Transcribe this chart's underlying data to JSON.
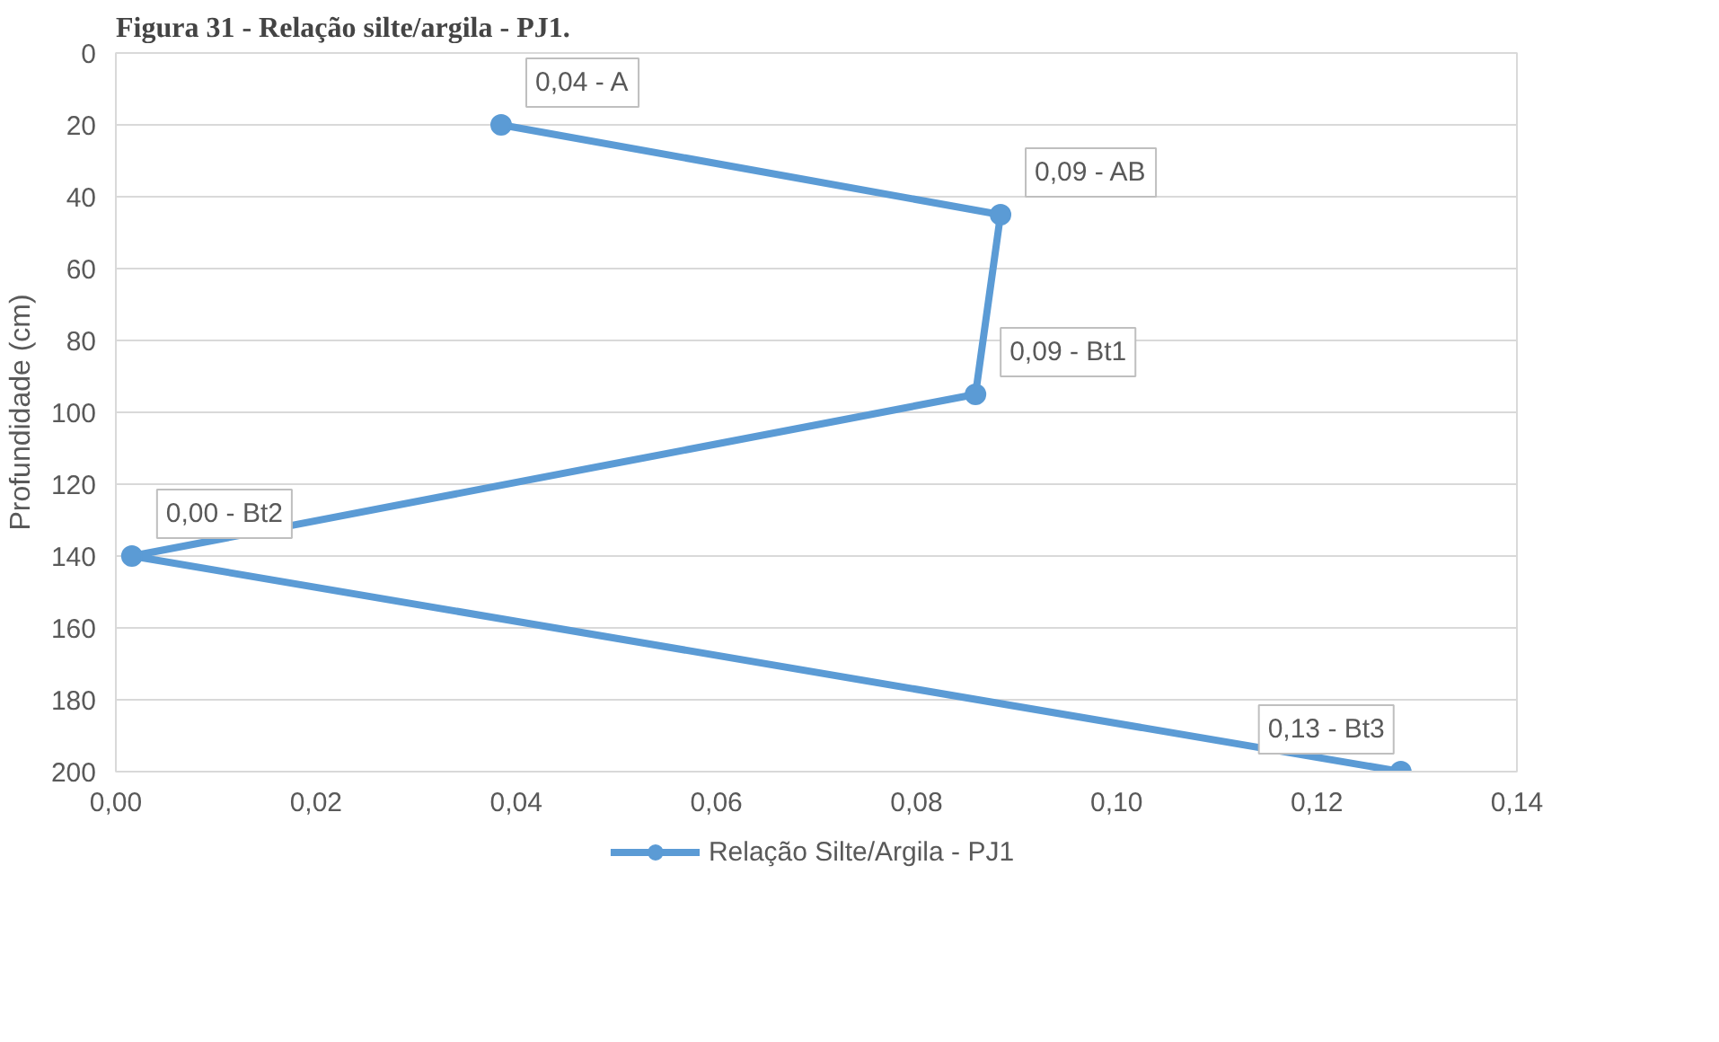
{
  "chart_data": {
    "type": "line",
    "title": "Figura 31 - Relação silte/argila - PJ1.",
    "ylabel": "Profundidade (cm)",
    "x": [
      0.0385,
      0.0884,
      0.0859,
      0.0016,
      0.1284
    ],
    "series": [
      {
        "name": "Relação Silte/Argila - PJ1",
        "color": "#5b9bd5",
        "values": [
          20,
          45,
          95,
          140,
          200
        ]
      }
    ],
    "annotations": [
      {
        "text": "0,04 - A",
        "x": 0.0385,
        "y": 20
      },
      {
        "text": "0,09 - AB",
        "x": 0.0884,
        "y": 45
      },
      {
        "text": "0,09 - Bt1",
        "x": 0.0859,
        "y": 95
      },
      {
        "text": "0,00 - Bt2",
        "x": 0.0016,
        "y": 140
      },
      {
        "text": "0,13 - Bt3",
        "x": 0.1284,
        "y": 200
      }
    ],
    "xlim": [
      0,
      0.14
    ],
    "xticks": [
      {
        "value": 0,
        "label": "0,00"
      },
      {
        "value": 0.02,
        "label": "0,02"
      },
      {
        "value": 0.04,
        "label": "0,04"
      },
      {
        "value": 0.06,
        "label": "0,06"
      },
      {
        "value": 0.08,
        "label": "0,08"
      },
      {
        "value": 0.1,
        "label": "0,10"
      },
      {
        "value": 0.12,
        "label": "0,12"
      },
      {
        "value": 0.14,
        "label": "0,14"
      }
    ],
    "ylim": [
      200,
      0
    ],
    "yticks": [
      0,
      20,
      40,
      60,
      80,
      100,
      120,
      140,
      160,
      180,
      200
    ],
    "grid": "y",
    "legend": "bottom",
    "marker": "circle",
    "line_style": "solid"
  }
}
